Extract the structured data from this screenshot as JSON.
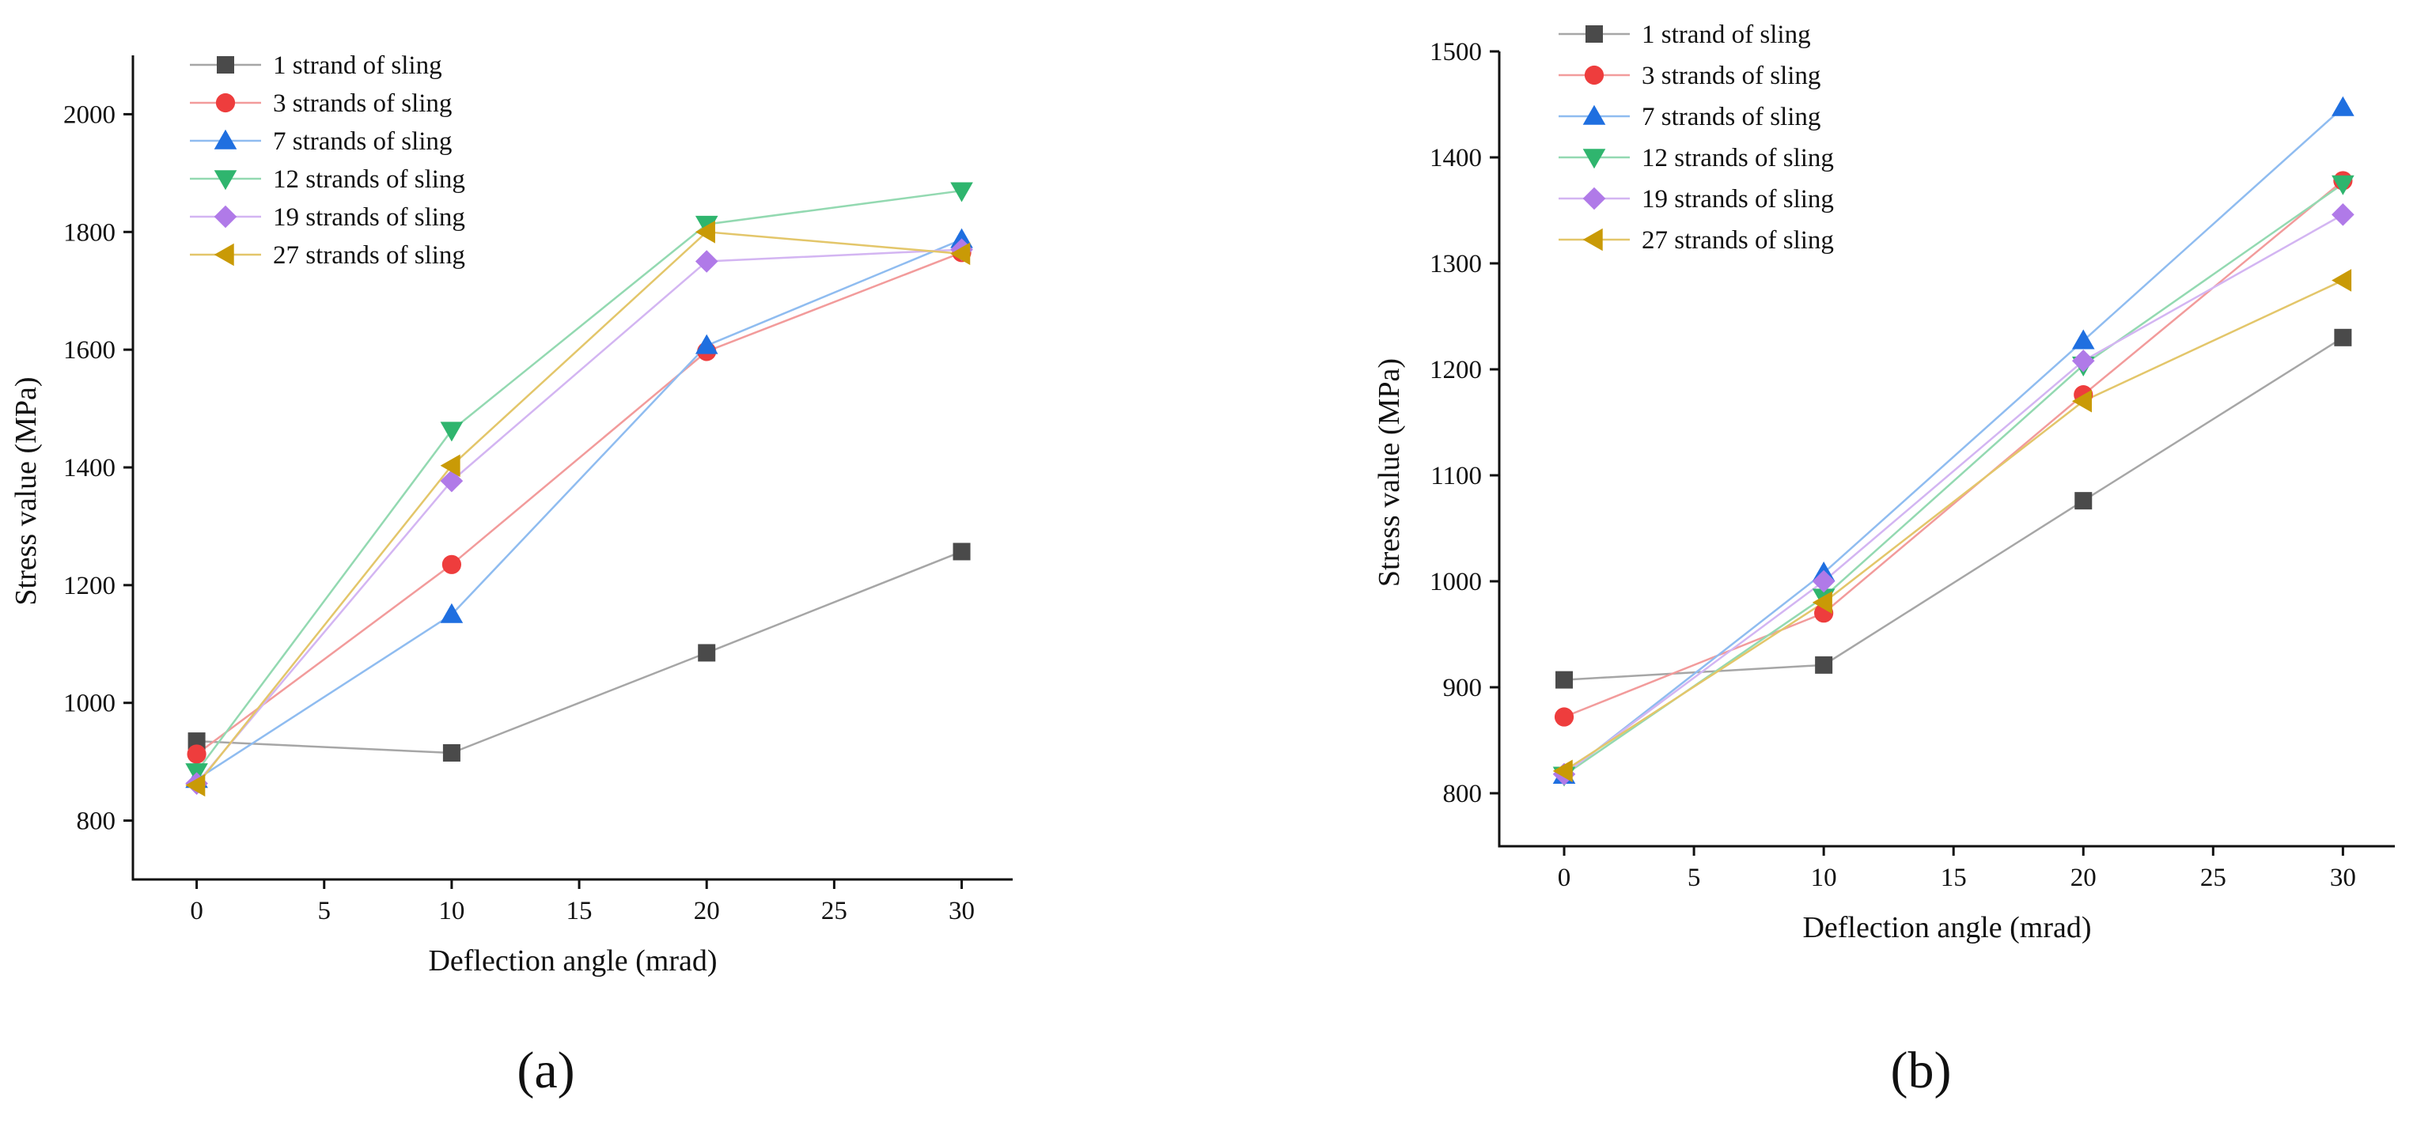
{
  "figure": {
    "panels": [
      "(a)",
      "(b)"
    ]
  },
  "chart_data": [
    {
      "type": "line",
      "panel_label": "(a)",
      "title": "",
      "xlabel": "Deflection angle (mrad)",
      "ylabel": "Stress value (MPa)",
      "xlim": [
        -2.5,
        32
      ],
      "ylim": [
        700,
        2100
      ],
      "xticks": [
        0,
        5,
        10,
        15,
        20,
        25,
        30
      ],
      "yticks": [
        800,
        1000,
        1200,
        1400,
        1600,
        1800,
        2000
      ],
      "x": [
        0,
        10,
        20,
        30
      ],
      "legend_position": "top-left",
      "grid": false,
      "series": [
        {
          "name": "1 strand of sling",
          "marker": "square",
          "color": "#4a4a4a",
          "line_color": "#a6a6a6",
          "values": [
            935,
            915,
            1085,
            1257
          ]
        },
        {
          "name": "3 strands of sling",
          "marker": "circle",
          "color": "#ee3d3d",
          "line_color": "#f29b9b",
          "values": [
            913,
            1235,
            1597,
            1765
          ]
        },
        {
          "name": "7 strands of sling",
          "marker": "triangle-up",
          "color": "#1f6fe0",
          "line_color": "#8fbcf0",
          "values": [
            870,
            1150,
            1607,
            1787
          ]
        },
        {
          "name": "12 strands of sling",
          "marker": "triangle-down",
          "color": "#2fb56e",
          "line_color": "#93d9b1",
          "values": [
            883,
            1463,
            1813,
            1870
          ]
        },
        {
          "name": "19 strands of sling",
          "marker": "diamond",
          "color": "#b07ae8",
          "line_color": "#d3b5f2",
          "values": [
            863,
            1377,
            1750,
            1770
          ]
        },
        {
          "name": "27 strands of sling",
          "marker": "triangle-left",
          "color": "#c99a06",
          "line_color": "#e3c66a",
          "values": [
            860,
            1403,
            1800,
            1763
          ]
        }
      ]
    },
    {
      "type": "line",
      "panel_label": "(b)",
      "title": "",
      "xlabel": "Deflection angle (mrad)",
      "ylabel": "Stress value (MPa)",
      "xlim": [
        -2.5,
        32
      ],
      "ylim": [
        750,
        1500
      ],
      "xticks": [
        0,
        5,
        10,
        15,
        20,
        25,
        30
      ],
      "yticks": [
        800,
        900,
        1000,
        1100,
        1200,
        1300,
        1400,
        1500
      ],
      "x": [
        0,
        10,
        20,
        30
      ],
      "legend_position": "top-left",
      "grid": false,
      "series": [
        {
          "name": "1 strand of sling",
          "marker": "square",
          "color": "#4a4a4a",
          "line_color": "#a6a6a6",
          "values": [
            907,
            921,
            1076,
            1230
          ]
        },
        {
          "name": "3 strands of sling",
          "marker": "circle",
          "color": "#ee3d3d",
          "line_color": "#f29b9b",
          "values": [
            872,
            970,
            1176,
            1378
          ]
        },
        {
          "name": "7 strands of sling",
          "marker": "triangle-up",
          "color": "#1f6fe0",
          "line_color": "#8fbcf0",
          "values": [
            817,
            1008,
            1227,
            1447
          ]
        },
        {
          "name": "12 strands of sling",
          "marker": "triangle-down",
          "color": "#2fb56e",
          "line_color": "#93d9b1",
          "values": [
            817,
            985,
            1204,
            1375
          ]
        },
        {
          "name": "19 strands of sling",
          "marker": "diamond",
          "color": "#b07ae8",
          "line_color": "#d3b5f2",
          "values": [
            818,
            1000,
            1208,
            1346
          ]
        },
        {
          "name": "27 strands of sling",
          "marker": "triangle-left",
          "color": "#c99a06",
          "line_color": "#e3c66a",
          "values": [
            821,
            980,
            1170,
            1284
          ]
        }
      ]
    }
  ]
}
